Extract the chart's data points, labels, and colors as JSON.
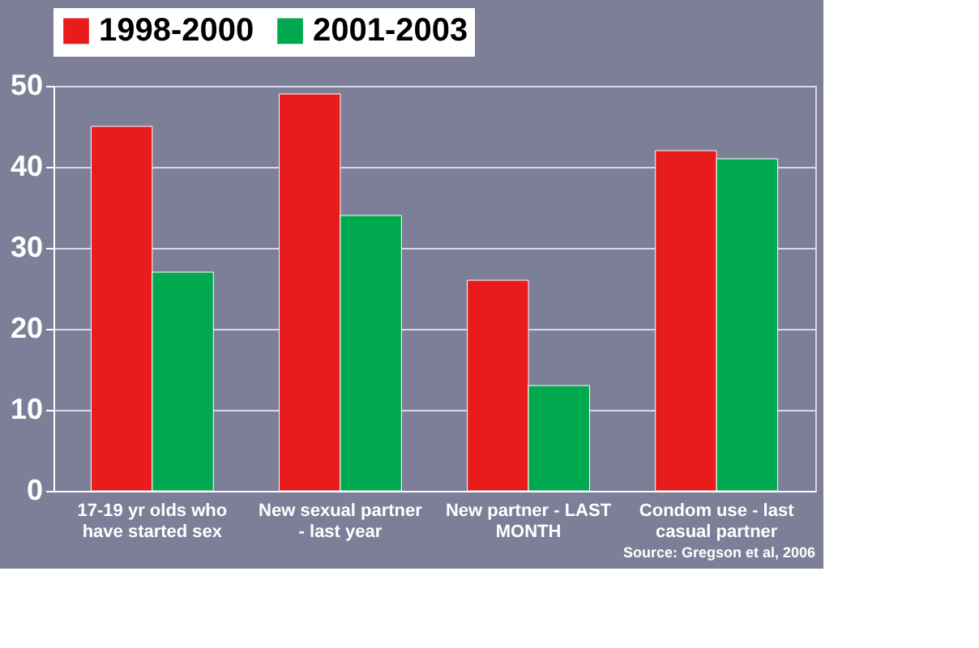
{
  "chart_data": {
    "type": "bar",
    "categories": [
      "17-19 yr olds who\nhave started sex",
      "New sexual partner\n- last year",
      "New partner - LAST\nMONTH",
      "Condom use - last\ncasual partner"
    ],
    "series": [
      {
        "name": "1998-2000",
        "color": "#e81c1c",
        "values": [
          45,
          49,
          26,
          42
        ]
      },
      {
        "name": "2001-2003",
        "color": "#00a94f",
        "values": [
          27,
          34,
          13,
          41
        ]
      }
    ],
    "ylim": [
      0,
      50
    ],
    "yticks": [
      0,
      10,
      20,
      30,
      40,
      50
    ],
    "grid": "y",
    "legend": "top",
    "annotations": [
      "Source: Gregson et al, 2006"
    ]
  }
}
